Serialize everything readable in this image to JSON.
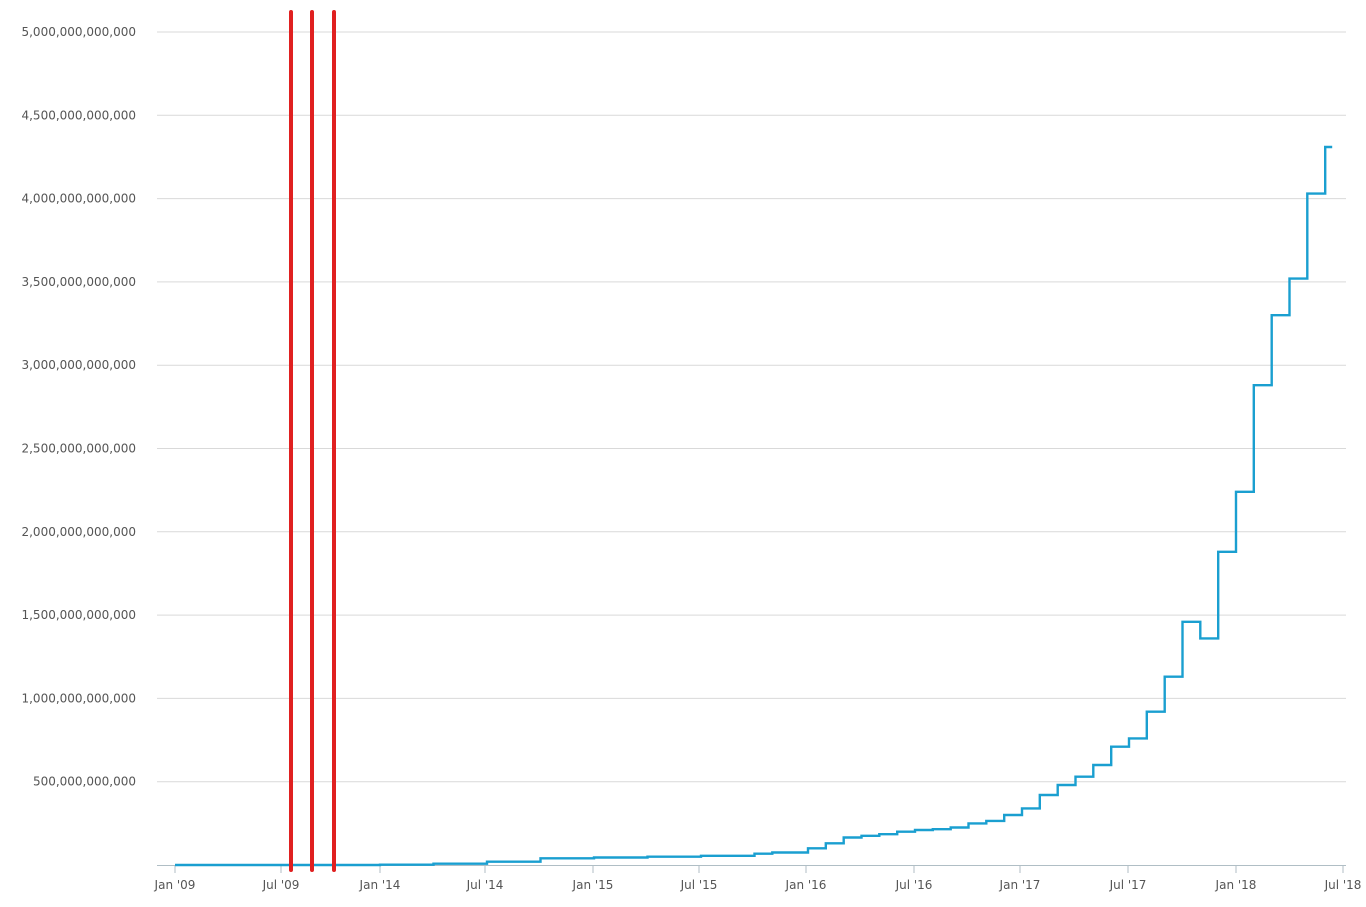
{
  "chart_data": {
    "type": "line",
    "title": "",
    "xlabel": "",
    "ylabel": "",
    "ylim": [
      0,
      5000000000000
    ],
    "grid": true,
    "y_ticks": [
      {
        "value": 500000000000,
        "label": "500,000,000,000"
      },
      {
        "value": 1000000000000,
        "label": "1,000,000,000,000"
      },
      {
        "value": 1500000000000,
        "label": "1,500,000,000,000"
      },
      {
        "value": 2000000000000,
        "label": "2,000,000,000,000"
      },
      {
        "value": 2500000000000,
        "label": "2,500,000,000,000"
      },
      {
        "value": 3000000000000,
        "label": "3,000,000,000,000"
      },
      {
        "value": 3500000000000,
        "label": "3,500,000,000,000"
      },
      {
        "value": 4000000000000,
        "label": "4,000,000,000,000"
      },
      {
        "value": 4500000000000,
        "label": "4,500,000,000,000"
      },
      {
        "value": 5000000000000,
        "label": "5,000,000,000,000"
      }
    ],
    "x_ticks": [
      {
        "label": "Jan '09"
      },
      {
        "label": "Jul '09"
      },
      {
        "label": "Jan '14"
      },
      {
        "label": "Jul '14"
      },
      {
        "label": "Jan '15"
      },
      {
        "label": "Jul '15"
      },
      {
        "label": "Jan '16"
      },
      {
        "label": "Jul '16"
      },
      {
        "label": "Jan '17"
      },
      {
        "label": "Jul '17"
      },
      {
        "label": "Jan '18"
      },
      {
        "label": "Jul '18"
      }
    ],
    "series": [
      {
        "color": "#1a9fd0",
        "points": [
          {
            "x": "Jan '09",
            "y": 0
          },
          {
            "x": "Jul '09",
            "y": 0
          },
          {
            "x": "Jan '14",
            "y": 2000000000
          },
          {
            "x": "Apr '14",
            "y": 8000000000
          },
          {
            "x": "Jul '14",
            "y": 20000000000
          },
          {
            "x": "Oct '14",
            "y": 40000000000
          },
          {
            "x": "Jan '15",
            "y": 45000000000
          },
          {
            "x": "Apr '15",
            "y": 50000000000
          },
          {
            "x": "Jul '15",
            "y": 55000000000
          },
          {
            "x": "Oct '15",
            "y": 68000000000
          },
          {
            "x": "Nov '15",
            "y": 75000000000
          },
          {
            "x": "Jan '16",
            "y": 100000000000
          },
          {
            "x": "Feb '16",
            "y": 130000000000
          },
          {
            "x": "Mar '16",
            "y": 165000000000
          },
          {
            "x": "Apr '16",
            "y": 175000000000
          },
          {
            "x": "May '16",
            "y": 185000000000
          },
          {
            "x": "Jun '16",
            "y": 200000000000
          },
          {
            "x": "Jul '16",
            "y": 210000000000
          },
          {
            "x": "Aug '16",
            "y": 215000000000
          },
          {
            "x": "Sep '16",
            "y": 225000000000
          },
          {
            "x": "Oct '16",
            "y": 250000000000
          },
          {
            "x": "Nov '16",
            "y": 265000000000
          },
          {
            "x": "Dec '16",
            "y": 300000000000
          },
          {
            "x": "Jan '17",
            "y": 340000000000
          },
          {
            "x": "Feb '17",
            "y": 420000000000
          },
          {
            "x": "Mar '17",
            "y": 480000000000
          },
          {
            "x": "Apr '17",
            "y": 530000000000
          },
          {
            "x": "May '17",
            "y": 600000000000
          },
          {
            "x": "Jun '17",
            "y": 710000000000
          },
          {
            "x": "Jul '17",
            "y": 760000000000
          },
          {
            "x": "Aug '17",
            "y": 920000000000
          },
          {
            "x": "Sep '17",
            "y": 1130000000000
          },
          {
            "x": "Oct '17",
            "y": 1460000000000
          },
          {
            "x": "Nov '17",
            "y": 1360000000000
          },
          {
            "x": "Dec '17",
            "y": 1880000000000
          },
          {
            "x": "Jan '18",
            "y": 2240000000000
          },
          {
            "x": "Feb '18",
            "y": 2880000000000
          },
          {
            "x": "Mar '18",
            "y": 3300000000000
          },
          {
            "x": "Apr '18",
            "y": 3520000000000
          },
          {
            "x": "May '18",
            "y": 4030000000000
          },
          {
            "x": "Jun '18",
            "y": 4310000000000
          }
        ]
      }
    ],
    "annotations": [
      {
        "type": "vertical-line",
        "color": "#e02020"
      },
      {
        "type": "vertical-line",
        "color": "#e02020"
      },
      {
        "type": "vertical-line",
        "color": "#e02020"
      }
    ]
  }
}
